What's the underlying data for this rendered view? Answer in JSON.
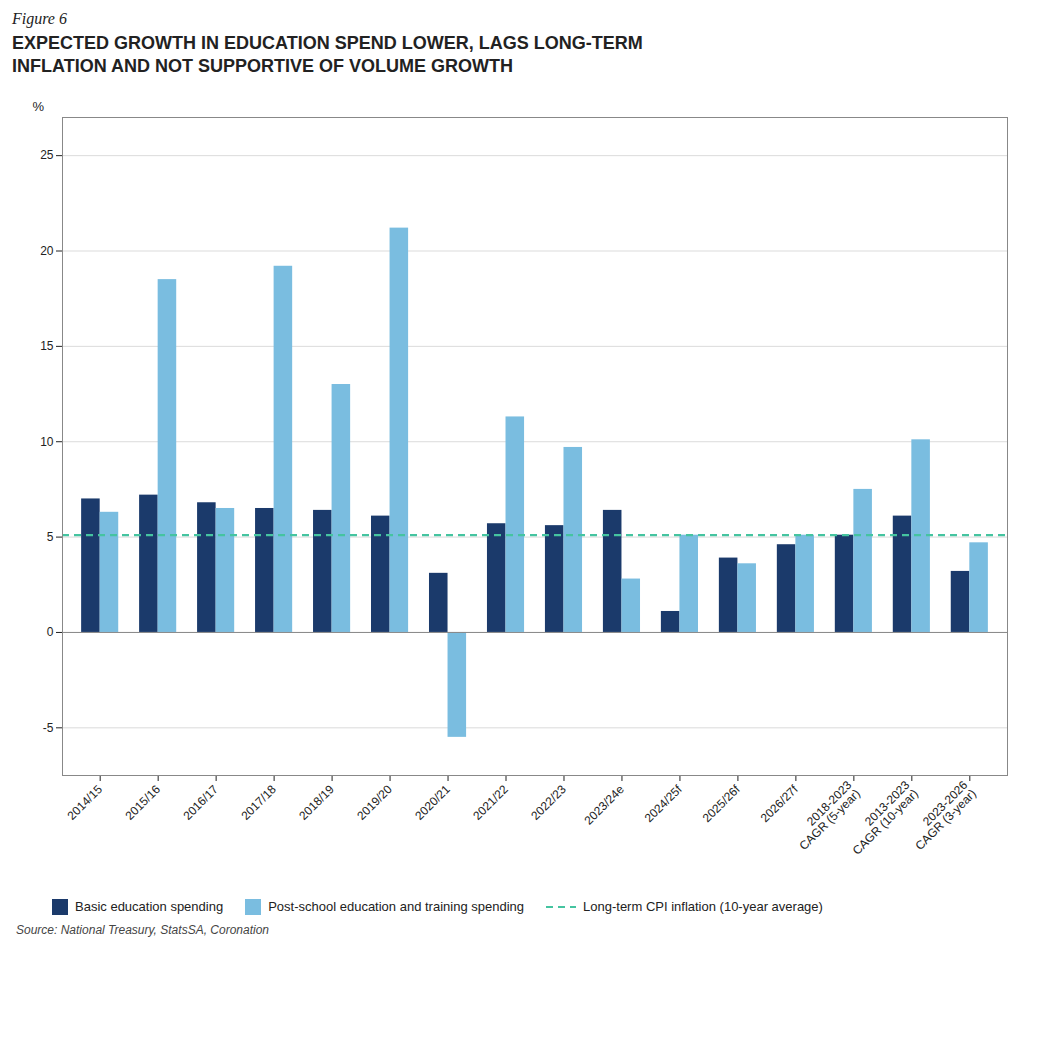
{
  "chart_data": {
    "type": "bar",
    "title": "EXPECTED GROWTH IN EDUCATION SPEND LOWER, LAGS LONG-TERM\nINFLATION AND NOT SUPPORTIVE OF VOLUME GROWTH",
    "annotations": [
      "Figure 6"
    ],
    "caption": "Source: National Treasury, StatsSA, Coronation",
    "ylabel": "%",
    "categories": [
      "2014/15",
      "2015/16",
      "2016/17",
      "2017/18",
      "2018/19",
      "2019/20",
      "2020/21",
      "2021/22",
      "2022/23",
      "2023/24e",
      "2024/25f",
      "2025/26f",
      "2026/27f",
      "2018-2023\nCAGR (5-year)",
      "2013-2023\nCAGR (10-year)",
      "2023-2026\nCAGR (3-year)"
    ],
    "series": [
      {
        "name": "Basic education spending",
        "color": "#1b3a6b",
        "values": [
          7.0,
          7.2,
          6.8,
          6.5,
          6.4,
          6.1,
          3.1,
          5.7,
          5.6,
          6.4,
          1.1,
          3.9,
          4.6,
          5.1,
          6.1,
          3.2
        ]
      },
      {
        "name": "Post-school education and training spending",
        "color": "#7abde0",
        "values": [
          6.3,
          18.5,
          6.5,
          19.2,
          13.0,
          21.2,
          -5.5,
          11.3,
          9.7,
          2.8,
          5.1,
          3.6,
          5.1,
          7.5,
          10.1,
          4.7
        ]
      }
    ],
    "reference_lines": [
      {
        "name": "Long-term CPI inflation (10-year average)",
        "value": 5.1,
        "color": "#45c4a0",
        "line_style": "dashed"
      }
    ],
    "ylim": [
      -7.5,
      27
    ],
    "yticks": [
      -5,
      0,
      5,
      10,
      15,
      20,
      25
    ],
    "grid": true,
    "legend": "bottom"
  }
}
